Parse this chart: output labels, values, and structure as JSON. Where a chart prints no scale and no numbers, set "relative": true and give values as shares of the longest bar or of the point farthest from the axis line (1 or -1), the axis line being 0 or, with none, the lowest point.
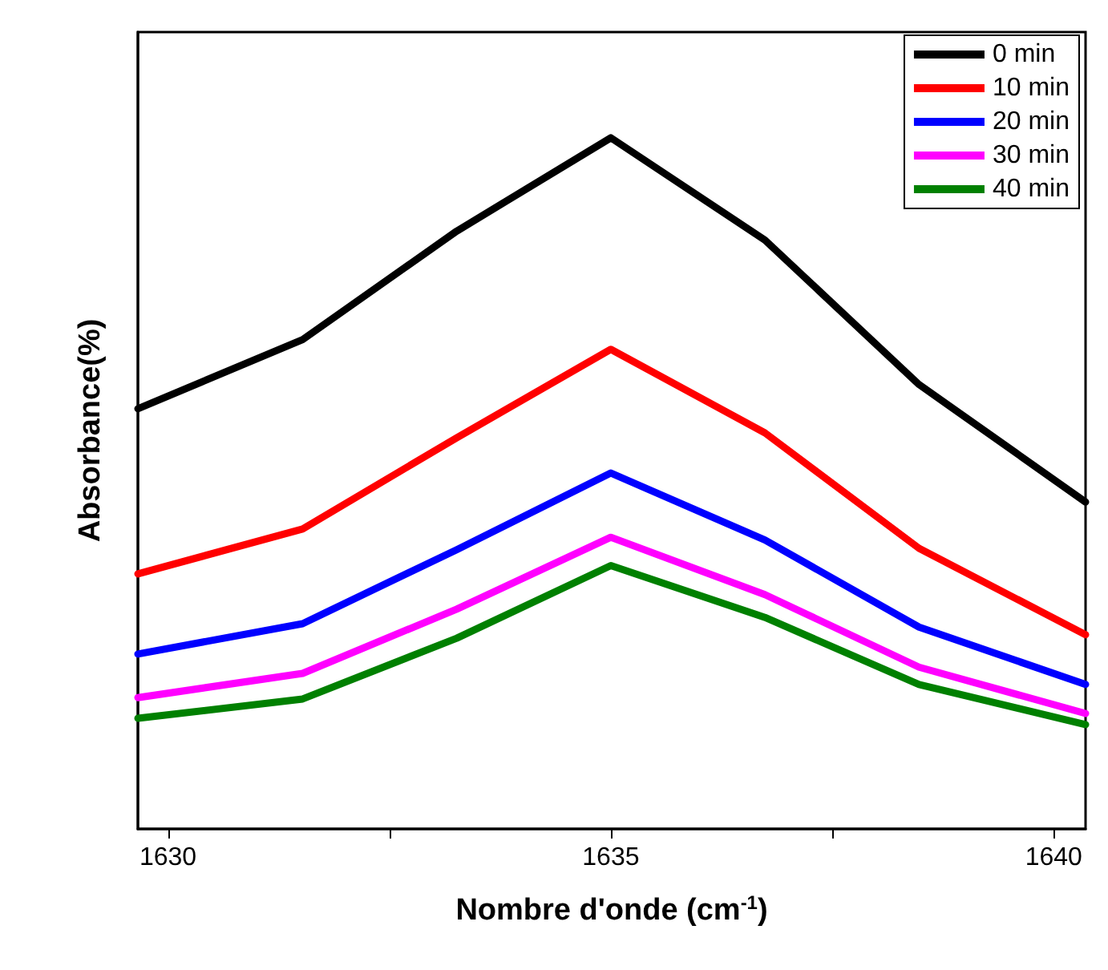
{
  "chart_data": {
    "type": "line",
    "relative": true,
    "xlabel": "Nombre d'onde (cm$^{-1}$)",
    "ylabel": "Absorbance(%)",
    "x": [
      1629.66,
      1631.52,
      1633.26,
      1635.0,
      1636.74,
      1638.48,
      1640.36
    ],
    "xlim": [
      1629.66,
      1640.36
    ],
    "xticks": [
      1630,
      {
        "value": 1632.5,
        "label": null
      },
      1635,
      {
        "value": 1637.5,
        "label": null
      },
      1640
    ],
    "legend": "top right",
    "marker": "none",
    "line_style": "solid",
    "grid": false,
    "series": [
      {
        "name": "0 min",
        "color": "#000000",
        "values": [
          0.608,
          0.708,
          0.865,
          1,
          0.852,
          0.643,
          0.473
        ]
      },
      {
        "name": "10 min",
        "color": "#ff0000",
        "values": [
          0.369,
          0.434,
          0.566,
          0.694,
          0.573,
          0.406,
          0.281
        ]
      },
      {
        "name": "20 min",
        "color": "#0000ff",
        "values": [
          0.253,
          0.297,
          0.404,
          0.515,
          0.418,
          0.292,
          0.209
        ]
      },
      {
        "name": "30 min",
        "color": "#ff00ff",
        "values": [
          0.19,
          0.225,
          0.318,
          0.422,
          0.339,
          0.234,
          0.167
        ]
      },
      {
        "name": "40 min",
        "color": "#008000",
        "values": [
          0.16,
          0.188,
          0.276,
          0.381,
          0.306,
          0.209,
          0.151
        ]
      }
    ]
  }
}
